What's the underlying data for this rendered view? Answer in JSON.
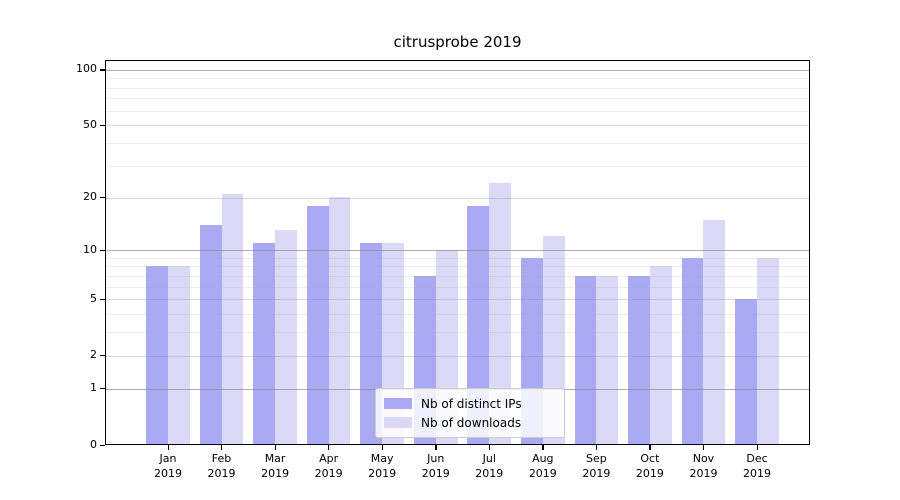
{
  "chart_data": {
    "type": "bar",
    "title": "citrusprobe 2019",
    "categories": [
      "Jan 2019",
      "Feb 2019",
      "Mar 2019",
      "Apr 2019",
      "May 2019",
      "Jun 2019",
      "Jul 2019",
      "Aug 2019",
      "Sep 2019",
      "Oct 2019",
      "Nov 2019",
      "Dec 2019"
    ],
    "series": [
      {
        "name": "Nb of distinct IPs",
        "color": "#a9a9f4",
        "values": [
          8,
          14,
          11,
          18,
          11,
          7,
          18,
          9,
          7,
          7,
          9,
          5
        ]
      },
      {
        "name": "Nb of downloads",
        "color": "#dadaf6",
        "values": [
          8,
          21,
          13,
          20,
          11,
          10,
          24,
          12,
          7,
          8,
          15,
          9
        ]
      }
    ],
    "xlabel": "",
    "ylabel": "",
    "yscale": "log1p",
    "yticks": [
      0,
      1,
      2,
      5,
      10,
      20,
      50,
      100
    ],
    "ylim": [
      0,
      112
    ],
    "grid": "on",
    "legend_position": "lower center"
  }
}
